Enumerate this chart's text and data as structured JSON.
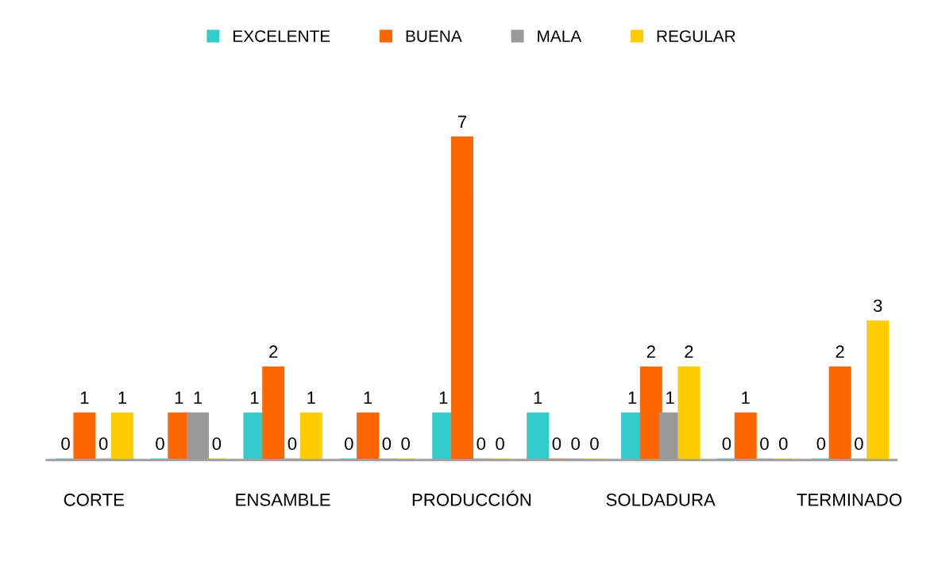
{
  "chart_data": {
    "type": "bar",
    "categories": [
      "CORTE",
      null,
      "ENSAMBLE",
      null,
      "PRODUCCIÓN",
      null,
      "SOLDADURA",
      null,
      "TERMINADO"
    ],
    "series": [
      {
        "name": "EXCELENTE",
        "color": "#33cccc",
        "values": [
          0,
          0,
          1,
          0,
          1,
          1,
          1,
          0,
          0
        ]
      },
      {
        "name": "BUENA",
        "color": "#ff6600",
        "values": [
          1,
          1,
          2,
          1,
          7,
          0,
          2,
          1,
          2
        ]
      },
      {
        "name": "MALA",
        "color": "#999999",
        "values": [
          0,
          1,
          0,
          0,
          0,
          0,
          1,
          0,
          0
        ]
      },
      {
        "name": "REGULAR",
        "color": "#ffcc00",
        "values": [
          1,
          0,
          1,
          0,
          0,
          0,
          2,
          0,
          3
        ]
      }
    ],
    "data_labels": true,
    "legend": "top",
    "grid": false,
    "tick_labels": "x"
  }
}
